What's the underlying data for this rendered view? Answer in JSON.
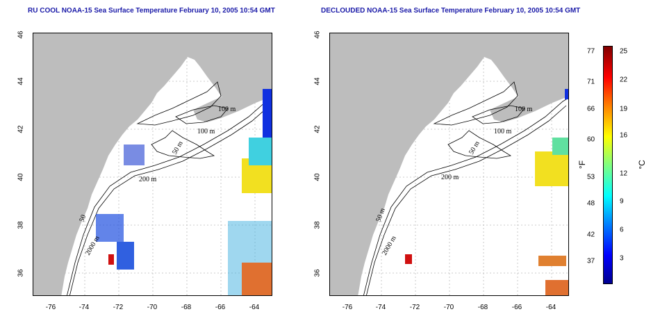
{
  "panels": [
    {
      "title": "RU COOL NOAA-15 Sea Surface Temperature February 10, 2005 10:54 GMT"
    },
    {
      "title": "DECLOUDED NOAA-15 Sea Surface Temperature February 10, 2005 10:54 GMT"
    }
  ],
  "x_ticks": [
    "-76",
    "-74",
    "-72",
    "-70",
    "-68",
    "-66",
    "-64"
  ],
  "y_ticks": [
    "46",
    "44",
    "42",
    "40",
    "38",
    "36"
  ],
  "contour_labels_left": [
    "100 m",
    "100 m",
    "50 m",
    "200 m",
    "50",
    "2000 m"
  ],
  "contour_labels_right": [
    "100 m",
    "100 m",
    "50 m",
    "200 m",
    "50 m",
    "2000 m"
  ],
  "colorbar": {
    "f_labels": [
      "77",
      "71",
      "66",
      "60",
      "53",
      "48",
      "42",
      "37"
    ],
    "c_labels": [
      "25",
      "22",
      "19",
      "16",
      "12",
      "9",
      "6",
      "3"
    ],
    "f_unit": "°F",
    "c_unit": "°C",
    "colors": [
      "#00008f",
      "#0000ff",
      "#0080ff",
      "#00ffff",
      "#80ff80",
      "#ffff00",
      "#ff8000",
      "#ff0000",
      "#800000"
    ]
  },
  "colors": {
    "land": "#bdbdbd",
    "ocean": "#ffffff",
    "contour": "#000000",
    "title": "#1a1aa8",
    "grid": "#bbbbbb"
  }
}
